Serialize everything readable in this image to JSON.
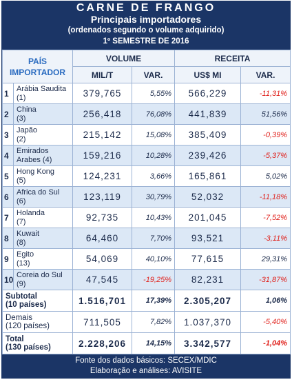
{
  "header": {
    "title": "CARNE DE FRANGO",
    "subtitle": "Principais importadores",
    "note": "(ordenados segundo o volume adquirido)",
    "period": "1º SEMESTRE DE 2016"
  },
  "columns": {
    "country": [
      "PAÍS",
      "IMPORTADOR"
    ],
    "volume": "VOLUME",
    "revenue": "RECEITA",
    "volume_unit": "MIL/T",
    "volume_var": "VAR.",
    "revenue_unit": "US$ MI",
    "revenue_var": "VAR."
  },
  "table": {
    "rows": [
      {
        "rank": "1",
        "country": [
          "Arábia Saudita",
          "(1)"
        ],
        "volume": "379,765",
        "volume_var": "5,55%",
        "revenue": "566,229",
        "revenue_var": "-11,31%"
      },
      {
        "rank": "2",
        "country": [
          "China",
          "(3)"
        ],
        "volume": "256,418",
        "volume_var": "76,08%",
        "revenue": "441,839",
        "revenue_var": "51,56%"
      },
      {
        "rank": "3",
        "country": [
          "Japão",
          "(2)"
        ],
        "volume": "215,142",
        "volume_var": "15,08%",
        "revenue": "385,409",
        "revenue_var": "-0,39%"
      },
      {
        "rank": "4",
        "country": [
          "Emirados",
          "Arabes (4)"
        ],
        "volume": "159,216",
        "volume_var": "10,28%",
        "revenue": "239,426",
        "revenue_var": "-5,37%"
      },
      {
        "rank": "5",
        "country": [
          "Hong Kong",
          "(5)"
        ],
        "volume": "124,231",
        "volume_var": "3,66%",
        "revenue": "165,861",
        "revenue_var": "5,02%"
      },
      {
        "rank": "6",
        "country": [
          "Africa do Sul",
          "(6)"
        ],
        "volume": "123,119",
        "volume_var": "30,79%",
        "revenue": "52,032",
        "revenue_var": "-11,18%"
      },
      {
        "rank": "7",
        "country": [
          "Holanda",
          "(7)"
        ],
        "volume": "92,735",
        "volume_var": "10,43%",
        "revenue": "201,045",
        "revenue_var": "-7,52%"
      },
      {
        "rank": "8",
        "country": [
          "Kuwait",
          "(8)"
        ],
        "volume": "64,460",
        "volume_var": "7,70%",
        "revenue": "93,521",
        "revenue_var": "-3,11%"
      },
      {
        "rank": "9",
        "country": [
          "Egito",
          "(13)"
        ],
        "volume": "54,069",
        "volume_var": "40,10%",
        "revenue": "77,615",
        "revenue_var": "29,31%"
      },
      {
        "rank": "10",
        "country": [
          "Coreia do Sul",
          "(9)"
        ],
        "volume": "47,545",
        "volume_var": "-19,25%",
        "revenue": "82,231",
        "revenue_var": "-31,87%"
      }
    ],
    "summary": [
      {
        "label": [
          "Subtotal",
          "(10 países)"
        ],
        "bold": true,
        "volume": "1.516,701",
        "volume_var": "17,39%",
        "revenue": "2.305,207",
        "revenue_var": "1,06%"
      },
      {
        "label": [
          "Demais",
          "(120 países)"
        ],
        "bold": false,
        "volume": "711,505",
        "volume_var": "7,82%",
        "revenue": "1.037,370",
        "revenue_var": "-5,40%"
      },
      {
        "label": [
          "Total",
          "(130 países)"
        ],
        "bold": true,
        "volume": "2.228,206",
        "volume_var": "14,15%",
        "revenue": "3.342,577",
        "revenue_var": "-1,04%"
      }
    ]
  },
  "footer": {
    "source": "Fonte dos dados básicos: SECEX/MDIC",
    "credit": "Elaboração e análises: AVISITE"
  }
}
